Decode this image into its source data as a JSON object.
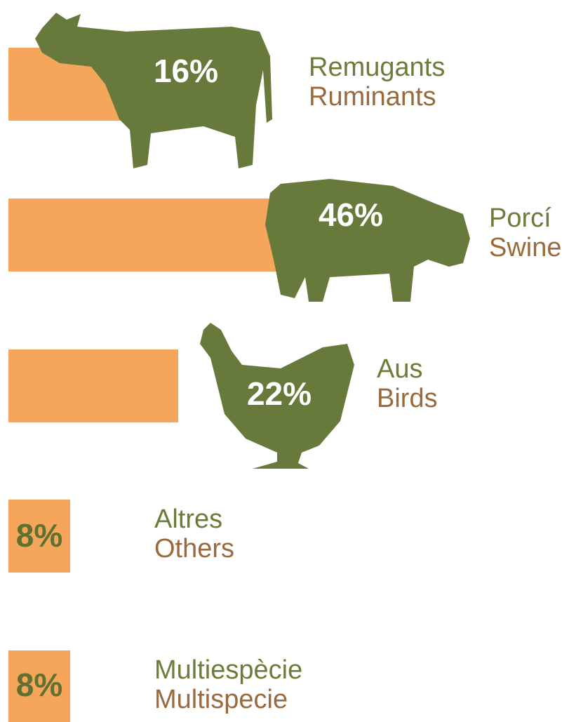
{
  "chart_data": {
    "type": "bar",
    "categories": [
      "Remugants",
      "Porcí",
      "Aus",
      "Altres",
      "Multiespècie"
    ],
    "categories_en": [
      "Ruminants",
      "Swine",
      "Birds",
      "Others",
      "Multispecie"
    ],
    "values": [
      16,
      46,
      22,
      8,
      8
    ],
    "value_labels": [
      "16%",
      "46%",
      "22%",
      "8%",
      "8%"
    ],
    "color": "#f5a65b"
  }
}
